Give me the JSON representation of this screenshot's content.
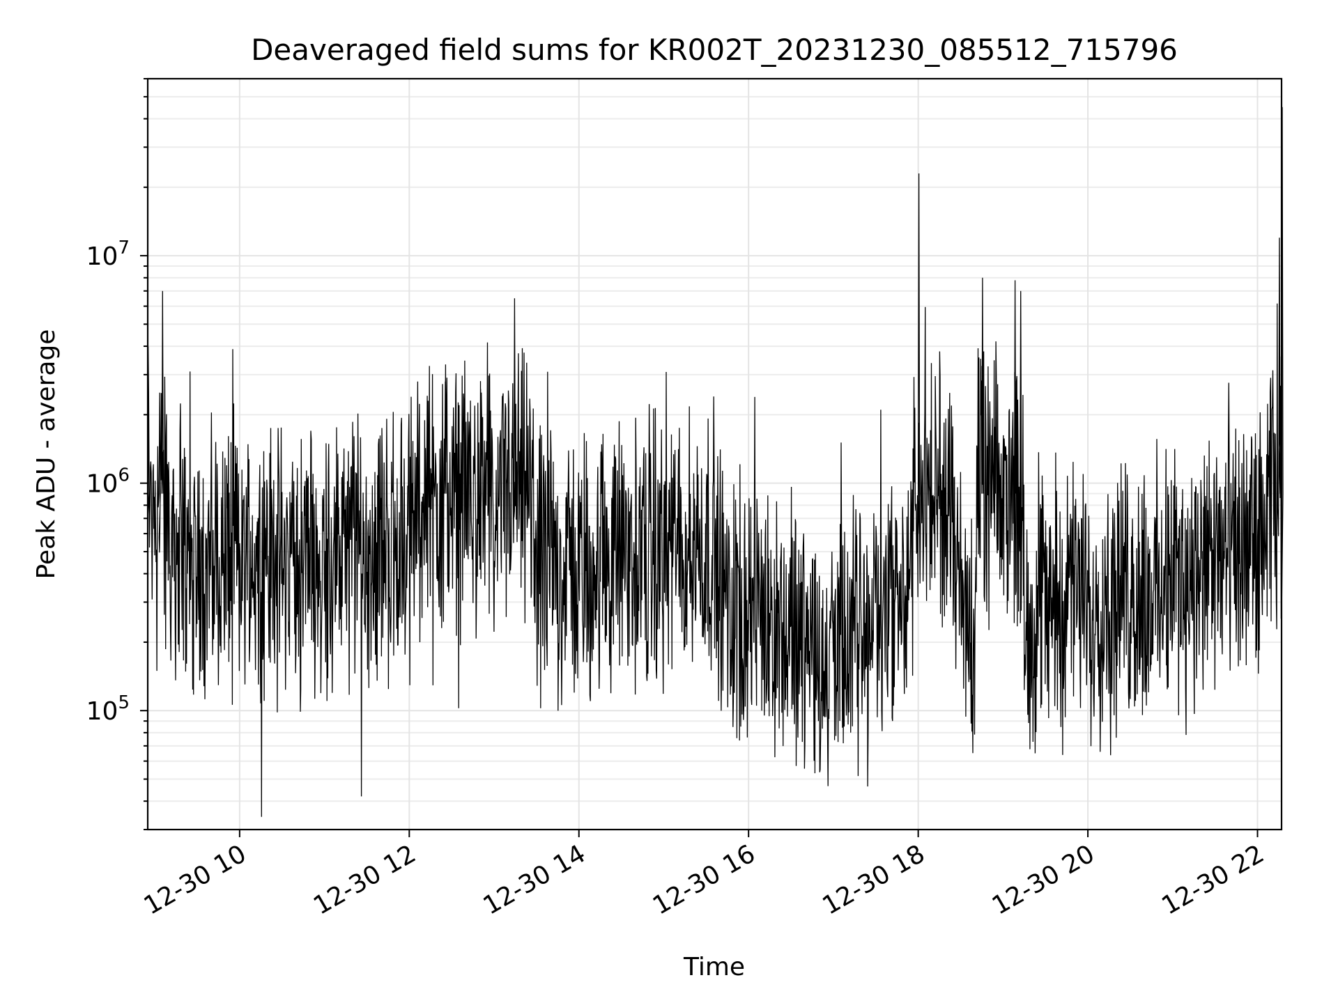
{
  "chart_data": {
    "type": "line",
    "title": "Deaveraged field sums for KR002T_20231230_085512_715796",
    "xlabel": "Time",
    "ylabel": "Peak ADU - average",
    "yscale": "log",
    "ylim": [
      30000,
      60000000
    ],
    "xlim": [
      "2023-12-30 08:55",
      "2023-12-30 22:17"
    ],
    "grid": true,
    "legend": "none",
    "line_color": "#000000",
    "x_ticks": [
      {
        "value": "2023-12-30 10:00",
        "label": "12-30 10"
      },
      {
        "value": "2023-12-30 12:00",
        "label": "12-30 12"
      },
      {
        "value": "2023-12-30 14:00",
        "label": "12-30 14"
      },
      {
        "value": "2023-12-30 16:00",
        "label": "12-30 16"
      },
      {
        "value": "2023-12-30 18:00",
        "label": "12-30 18"
      },
      {
        "value": "2023-12-30 20:00",
        "label": "12-30 20"
      },
      {
        "value": "2023-12-30 22:00",
        "label": "12-30 22"
      }
    ],
    "y_ticks": [
      {
        "value": 100000,
        "base": "10",
        "exp": "5"
      },
      {
        "value": 1000000,
        "base": "10",
        "exp": "6"
      },
      {
        "value": 10000000,
        "base": "10",
        "exp": "7"
      }
    ],
    "series": [
      {
        "x": [
          "2023-12-30 08:55",
          "2023-12-30 09:00",
          "2023-12-30 09:03",
          "2023-12-30 09:05",
          "2023-12-30 09:10",
          "2023-12-30 09:20",
          "2023-12-30 09:30",
          "2023-12-30 10:00",
          "2023-12-30 10:30",
          "2023-12-30 11:00",
          "2023-12-30 11:30",
          "2023-12-30 12:00",
          "2023-12-30 12:25",
          "2023-12-30 12:30",
          "2023-12-30 12:50",
          "2023-12-30 13:00",
          "2023-12-30 13:14",
          "2023-12-30 13:30",
          "2023-12-30 14:00",
          "2023-12-30 14:30",
          "2023-12-30 15:00",
          "2023-12-30 15:35",
          "2023-12-30 15:45",
          "2023-12-30 16:00",
          "2023-12-30 16:30",
          "2023-12-30 17:00",
          "2023-12-30 17:30",
          "2023-12-30 17:56",
          "2023-12-30 18:00",
          "2023-12-30 18:30",
          "2023-12-30 18:40",
          "2023-12-30 18:45",
          "2023-12-30 19:00",
          "2023-12-30 19:08",
          "2023-12-30 19:12",
          "2023-12-30 19:15",
          "2023-12-30 19:30",
          "2023-12-30 19:54",
          "2023-12-30 20:00",
          "2023-12-30 20:30",
          "2023-12-30 21:00",
          "2023-12-30 21:30",
          "2023-12-30 22:00",
          "2023-12-30 22:10",
          "2023-12-30 22:15",
          "2023-12-30 22:17"
        ],
        "values": [
          1800000,
          1300000,
          2500000,
          7000000,
          600000,
          500000,
          450000,
          480000,
          450000,
          470000,
          500000,
          550000,
          2800000,
          650000,
          2600000,
          500000,
          6500000,
          450000,
          420000,
          480000,
          500000,
          550000,
          300000,
          280000,
          230000,
          160000,
          280000,
          350000,
          23000000,
          300000,
          260000,
          8000000,
          600000,
          7800000,
          7000000,
          250000,
          300000,
          320000,
          280000,
          320000,
          350000,
          420000,
          500000,
          800000,
          12000000,
          45000000
        ]
      }
    ]
  }
}
